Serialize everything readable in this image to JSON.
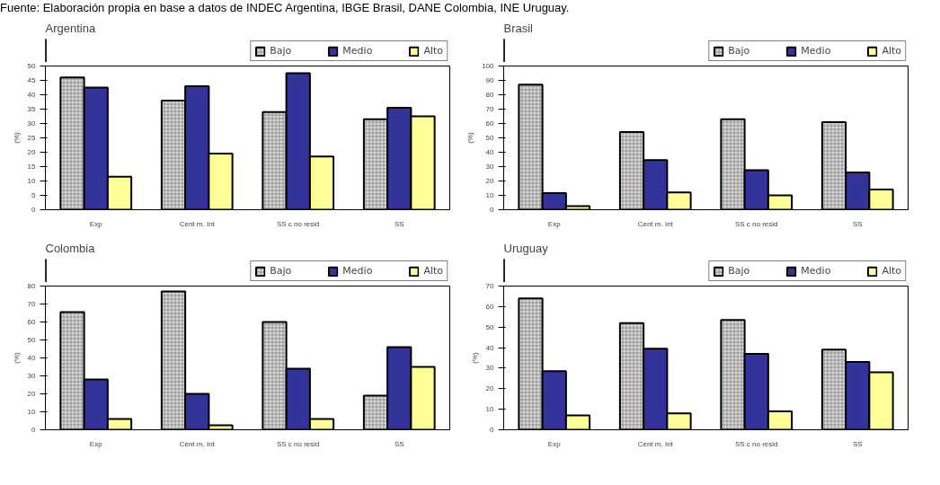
{
  "chart_data": [
    {
      "type": "bar",
      "title": "Argentina",
      "ylabel": "(%)",
      "annotations": [
        "Fuente: Elaboración propia en base a datos de INDEC Argentina, IBGE Brasil, DANE Colombia, INE Uruguay."
      ],
      "categories": [
        "Exp",
        "Cent m. Int",
        "SS c no resid",
        "SS"
      ],
      "ylim": [
        0,
        50
      ],
      "yticks": [
        0,
        5,
        10,
        15,
        20,
        25,
        30,
        35,
        40,
        45,
        50
      ],
      "grid": false,
      "legend": "top right",
      "series": [
        {
          "name": "Bajo",
          "color": "#d9d9d9",
          "values": [
            46,
            38,
            34,
            31.5
          ]
        },
        {
          "name": "Medio",
          "color": "#333399",
          "values": [
            42.5,
            43,
            47.5,
            35.5
          ]
        },
        {
          "name": "Alto",
          "color": "#ffff99",
          "values": [
            11.5,
            19.5,
            18.5,
            32.5
          ]
        }
      ]
    },
    {
      "type": "bar",
      "title": "Brasil",
      "ylabel": "(%)",
      "categories": [
        "Exp",
        "Cent m. Int",
        "SS c no resid",
        "SS"
      ],
      "ylim": [
        0,
        100
      ],
      "yticks": [
        0,
        10,
        20,
        30,
        40,
        50,
        60,
        70,
        80,
        90,
        100
      ],
      "grid": false,
      "legend": "top right",
      "series": [
        {
          "name": "Bajo",
          "color": "#d9d9d9",
          "values": [
            87,
            54,
            63,
            61
          ]
        },
        {
          "name": "Medio",
          "color": "#333399",
          "values": [
            11.5,
            34.5,
            27.5,
            26
          ]
        },
        {
          "name": "Alto",
          "color": "#ffff99",
          "values": [
            2.5,
            12,
            10,
            14
          ]
        }
      ]
    },
    {
      "type": "bar",
      "title": "Colombia",
      "ylabel": "(%)",
      "categories": [
        "Exp",
        "Cent m. Int",
        "SS c no resid",
        "SS"
      ],
      "ylim": [
        0,
        80
      ],
      "yticks": [
        0,
        10,
        20,
        30,
        40,
        50,
        60,
        70,
        80
      ],
      "grid": false,
      "legend": "top right",
      "series": [
        {
          "name": "Bajo",
          "color": "#d9d9d9",
          "values": [
            65.5,
            77,
            60,
            19
          ]
        },
        {
          "name": "Medio",
          "color": "#333399",
          "values": [
            28,
            20,
            34,
            46
          ]
        },
        {
          "name": "Alto",
          "color": "#ffff99",
          "values": [
            6,
            2.5,
            6,
            35
          ]
        }
      ]
    },
    {
      "type": "bar",
      "title": "Uruguay",
      "ylabel": "(%)",
      "categories": [
        "Exp",
        "Cent m. Int",
        "SS c no resid",
        "SS"
      ],
      "ylim": [
        0,
        70
      ],
      "yticks": [
        0,
        10,
        20,
        30,
        40,
        50,
        60,
        70
      ],
      "grid": false,
      "legend": "top right",
      "series": [
        {
          "name": "Bajo",
          "color": "#d9d9d9",
          "values": [
            64,
            52,
            53.5,
            39
          ]
        },
        {
          "name": "Medio",
          "color": "#333399",
          "values": [
            28.5,
            39.5,
            37,
            33
          ]
        },
        {
          "name": "Alto",
          "color": "#ffff99",
          "values": [
            7,
            8,
            9,
            28
          ]
        }
      ]
    }
  ]
}
